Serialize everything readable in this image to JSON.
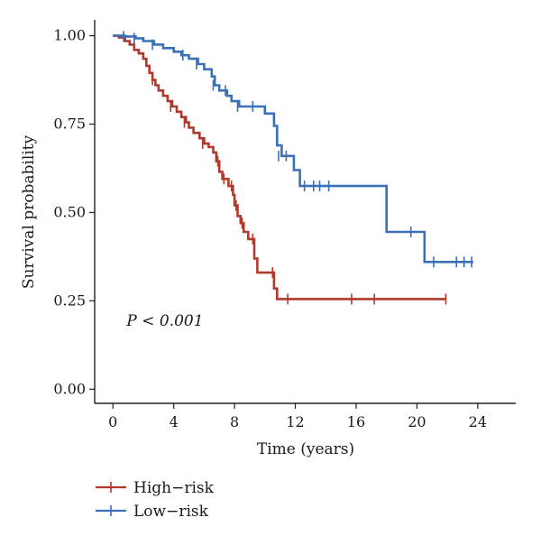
{
  "chart_data": {
    "type": "line",
    "subtype": "kaplan-meier step curve",
    "xlabel": "Time (years)",
    "ylabel": "Survival probability",
    "xlim": [
      -1.2,
      26.5
    ],
    "ylim": [
      -0.04,
      1.045
    ],
    "x_ticks": [
      0,
      4,
      8,
      12,
      16,
      20,
      24
    ],
    "y_ticks": [
      0.0,
      0.25,
      0.5,
      0.75,
      1.0
    ],
    "y_tick_labels": [
      "0.00",
      "0.25",
      "0.50",
      "0.75",
      "1.00"
    ],
    "annotation": {
      "text": "P < 0.001",
      "x": 0.9,
      "y": 0.18
    },
    "grid": false,
    "legend": "bottom-left",
    "series": [
      {
        "name": "High−risk",
        "color": "#b03a2e",
        "steps": [
          [
            0,
            1.0
          ],
          [
            0.4,
            0.995
          ],
          [
            0.8,
            0.985
          ],
          [
            1.1,
            0.975
          ],
          [
            1.4,
            0.96
          ],
          [
            1.7,
            0.95
          ],
          [
            2.0,
            0.935
          ],
          [
            2.2,
            0.915
          ],
          [
            2.4,
            0.895
          ],
          [
            2.6,
            0.875
          ],
          [
            2.8,
            0.86
          ],
          [
            3.0,
            0.845
          ],
          [
            3.3,
            0.83
          ],
          [
            3.6,
            0.815
          ],
          [
            3.9,
            0.8
          ],
          [
            4.2,
            0.785
          ],
          [
            4.5,
            0.77
          ],
          [
            4.8,
            0.755
          ],
          [
            5.0,
            0.74
          ],
          [
            5.3,
            0.725
          ],
          [
            5.7,
            0.71
          ],
          [
            6.0,
            0.695
          ],
          [
            6.3,
            0.685
          ],
          [
            6.6,
            0.67
          ],
          [
            6.8,
            0.645
          ],
          [
            7.0,
            0.615
          ],
          [
            7.2,
            0.595
          ],
          [
            7.6,
            0.575
          ],
          [
            7.9,
            0.55
          ],
          [
            8.0,
            0.52
          ],
          [
            8.2,
            0.49
          ],
          [
            8.4,
            0.47
          ],
          [
            8.6,
            0.445
          ],
          [
            8.9,
            0.425
          ],
          [
            9.3,
            0.37
          ],
          [
            9.5,
            0.33
          ],
          [
            10.6,
            0.285
          ],
          [
            10.8,
            0.255
          ],
          [
            21.9,
            0.255
          ]
        ],
        "censored": [
          [
            2.6,
            0.875
          ],
          [
            3.8,
            0.8
          ],
          [
            4.7,
            0.755
          ],
          [
            5.9,
            0.695
          ],
          [
            6.9,
            0.645
          ],
          [
            7.3,
            0.595
          ],
          [
            7.8,
            0.575
          ],
          [
            8.1,
            0.52
          ],
          [
            8.5,
            0.47
          ],
          [
            9.2,
            0.425
          ],
          [
            10.5,
            0.33
          ],
          [
            11.5,
            0.255
          ],
          [
            15.7,
            0.255
          ],
          [
            17.2,
            0.255
          ],
          [
            21.9,
            0.255
          ]
        ]
      },
      {
        "name": "Low−risk",
        "color": "#3a70b8",
        "steps": [
          [
            0,
            1.0
          ],
          [
            0.8,
            0.998
          ],
          [
            1.5,
            0.993
          ],
          [
            2.0,
            0.985
          ],
          [
            2.7,
            0.975
          ],
          [
            3.3,
            0.965
          ],
          [
            4.0,
            0.955
          ],
          [
            4.5,
            0.945
          ],
          [
            5.0,
            0.935
          ],
          [
            5.6,
            0.92
          ],
          [
            6.0,
            0.905
          ],
          [
            6.5,
            0.885
          ],
          [
            6.7,
            0.86
          ],
          [
            7.0,
            0.845
          ],
          [
            7.5,
            0.83
          ],
          [
            7.8,
            0.815
          ],
          [
            8.3,
            0.8
          ],
          [
            9.5,
            0.8
          ],
          [
            10.0,
            0.78
          ],
          [
            10.6,
            0.745
          ],
          [
            10.8,
            0.69
          ],
          [
            11.1,
            0.66
          ],
          [
            11.9,
            0.62
          ],
          [
            12.3,
            0.575
          ],
          [
            17.7,
            0.575
          ],
          [
            18.0,
            0.445
          ],
          [
            20.3,
            0.445
          ],
          [
            20.5,
            0.36
          ],
          [
            23.7,
            0.36
          ]
        ],
        "censored": [
          [
            0.7,
            0.998
          ],
          [
            1.4,
            0.993
          ],
          [
            2.6,
            0.975
          ],
          [
            4.6,
            0.945
          ],
          [
            5.5,
            0.92
          ],
          [
            6.6,
            0.86
          ],
          [
            7.4,
            0.845
          ],
          [
            8.2,
            0.8
          ],
          [
            9.2,
            0.8
          ],
          [
            10.9,
            0.66
          ],
          [
            11.4,
            0.66
          ],
          [
            12.6,
            0.575
          ],
          [
            13.2,
            0.575
          ],
          [
            13.6,
            0.575
          ],
          [
            14.2,
            0.575
          ],
          [
            19.6,
            0.445
          ],
          [
            21.1,
            0.36
          ],
          [
            22.6,
            0.36
          ],
          [
            23.1,
            0.36
          ],
          [
            23.6,
            0.36
          ]
        ]
      }
    ]
  }
}
